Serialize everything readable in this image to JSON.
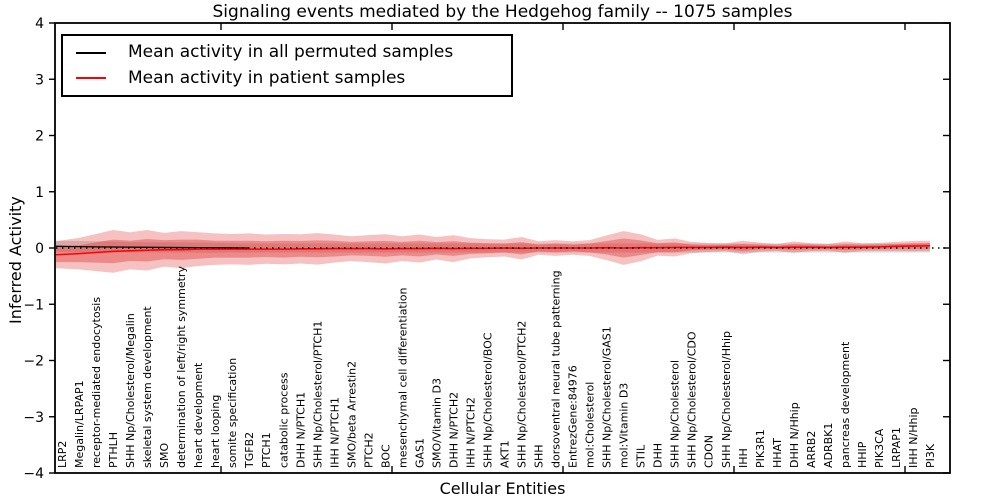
{
  "chart_data": {
    "type": "line",
    "title": "Signaling events mediated by the Hedgehog family -- 1075 samples",
    "xlabel": "Cellular Entities",
    "ylabel": "Inferred Activity",
    "ylim": [
      -4,
      4
    ],
    "xtick_rotation": 90,
    "grid": false,
    "legend_position": "upper left",
    "legend": [
      {
        "label": "Mean activity in all permuted samples",
        "color": "#000000"
      },
      {
        "label": "Mean activity in patient samples",
        "color": "#ff0000"
      }
    ],
    "colors": {
      "permuted_line": "#000000",
      "patient_line": "#ff0000",
      "patient_band": "#dd3333",
      "permuted_band": "#bbbbbb",
      "zero_line": "#000000",
      "axes": "#000000"
    },
    "yticks": [
      {
        "label": "4",
        "value": 4
      },
      {
        "label": "3",
        "value": 3
      },
      {
        "label": "2",
        "value": 2
      },
      {
        "label": "1",
        "value": 1
      },
      {
        "label": "0",
        "value": 0
      },
      {
        "label": "−1",
        "value": -1
      },
      {
        "label": "−2",
        "value": -2
      },
      {
        "label": "−3",
        "value": -3
      },
      {
        "label": "−4",
        "value": -4
      }
    ],
    "entities": [
      "LRP2",
      "Megalin/LRPAP1",
      "receptor-mediated endocytosis",
      "PTHLH",
      "SHH Np/Cholesterol/Megalin",
      "skeletal system development",
      "SMO",
      "determination of left/right symmetry",
      "heart development",
      "heart looping",
      "somite specification",
      "TGFB2",
      "PTCH1",
      "catabolic process",
      "DHH N/PTCH1",
      "SHH Np/Cholesterol/PTCH1",
      "IHH N/PTCH1",
      "SMO/beta Arrestin2",
      "PTCH2",
      "BOC",
      "mesenchymal cell differentiation",
      "GAS1",
      "SMO/Vitamin D3",
      "DHH N/PTCH2",
      "IHH N/PTCH2",
      "SHH Np/Cholesterol/BOC",
      "AKT1",
      "SHH Np/Cholesterol/PTCH2",
      "SHH",
      "dorsoventral neural tube patterning",
      "EntrezGene:84976",
      "mol:Cholesterol",
      "SHH Np/Cholesterol/GAS1",
      "mol:Vitamin D3",
      "STIL",
      "DHH",
      "SHH Np/Cholesterol",
      "SHH Np/Cholesterol/CDO",
      "CDON",
      "SHH Np/Cholesterol/Hhip",
      "IHH",
      "PIK3R1",
      "HHAT",
      "DHH N/Hhip",
      "ARRB2",
      "ADRBK1",
      "pancreas development",
      "HHIP",
      "PIK3CA",
      "LRPAP1",
      "IHH N/Hhip",
      "PI3K"
    ],
    "permuted_mean": [
      0.03,
      0.025,
      0.02,
      0.018,
      0.015,
      0.012,
      0.01,
      0.008,
      0.006,
      0.004,
      0.002,
      0,
      0,
      0,
      0,
      0,
      0,
      0,
      0,
      0,
      0,
      0,
      0,
      0,
      0,
      0,
      0,
      0,
      0,
      0,
      0,
      0,
      0,
      0,
      0,
      0,
      0,
      0,
      0,
      0,
      0,
      0,
      0,
      0,
      0,
      0,
      0,
      0,
      0,
      0,
      0,
      0
    ],
    "permuted_std": [
      0.1,
      0.1,
      0.1,
      0.1,
      0.09,
      0.09,
      0.09,
      0.09,
      0.09,
      0.09,
      0.08,
      0.08,
      0.08,
      0.08,
      0.08,
      0.08,
      0.08,
      0.08,
      0.08,
      0.08,
      0.08,
      0.08,
      0.08,
      0.08,
      0.08,
      0.08,
      0.08,
      0.08,
      0.08,
      0.08,
      0.08,
      0.08,
      0.08,
      0.08,
      0.08,
      0.08,
      0.08,
      0.08,
      0.08,
      0.08,
      0.08,
      0.08,
      0.08,
      0.08,
      0.08,
      0.08,
      0.08,
      0.08,
      0.08,
      0.08,
      0.08,
      0.08
    ],
    "patient_mean": [
      -0.12,
      -0.1,
      -0.08,
      -0.06,
      -0.05,
      -0.04,
      -0.03,
      -0.03,
      -0.02,
      -0.02,
      -0.02,
      -0.02,
      -0.02,
      -0.02,
      -0.015,
      -0.015,
      -0.01,
      -0.01,
      -0.01,
      -0.015,
      -0.01,
      -0.01,
      -0.005,
      -0.01,
      -0.005,
      -0.005,
      0,
      -0.005,
      0,
      0,
      0,
      0,
      0.005,
      0,
      0.005,
      0.005,
      0.01,
      0.01,
      0.01,
      0.015,
      0.01,
      0.015,
      0.01,
      0.015,
      0.015,
      0.01,
      0.015,
      0.015,
      0.02,
      0.03,
      0.035,
      0.04
    ],
    "patient_std_inner": [
      0.13,
      0.15,
      0.18,
      0.21,
      0.18,
      0.2,
      0.17,
      0.18,
      0.17,
      0.15,
      0.15,
      0.15,
      0.14,
      0.15,
      0.14,
      0.15,
      0.14,
      0.12,
      0.13,
      0.14,
      0.12,
      0.14,
      0.11,
      0.13,
      0.1,
      0.09,
      0.08,
      0.11,
      0.06,
      0.08,
      0.06,
      0.08,
      0.12,
      0.17,
      0.13,
      0.08,
      0.09,
      0.05,
      0.04,
      0.04,
      0.06,
      0.04,
      0.03,
      0.05,
      0.04,
      0.03,
      0.05,
      0.04,
      0.04,
      0.04,
      0.05,
      0.05
    ],
    "patient_std_outer": [
      0.24,
      0.28,
      0.33,
      0.38,
      0.33,
      0.36,
      0.3,
      0.33,
      0.3,
      0.28,
      0.27,
      0.28,
      0.26,
      0.27,
      0.26,
      0.28,
      0.25,
      0.22,
      0.24,
      0.26,
      0.22,
      0.25,
      0.2,
      0.24,
      0.18,
      0.16,
      0.15,
      0.2,
      0.12,
      0.14,
      0.12,
      0.14,
      0.22,
      0.3,
      0.24,
      0.14,
      0.16,
      0.1,
      0.08,
      0.07,
      0.12,
      0.08,
      0.06,
      0.1,
      0.07,
      0.06,
      0.1,
      0.07,
      0.07,
      0.08,
      0.09,
      0.09
    ]
  }
}
